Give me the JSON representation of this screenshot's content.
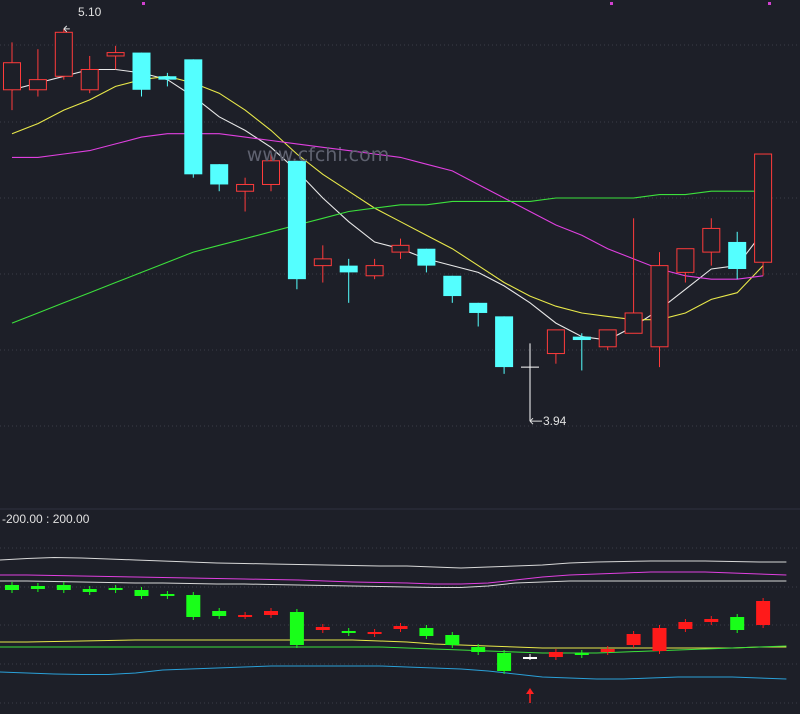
{
  "watermark": "www.cfchi.com",
  "colors": {
    "background": "#1d1f28",
    "grid": "#3a3d48",
    "divider": "#2e3140",
    "up_candle": "#ff3b3b",
    "down_candle": "#54ffff",
    "sub_up": "#ff1a1a",
    "sub_down": "#19ff19",
    "ma_white": "#e8e8e8",
    "ma_yellow": "#e8e84a",
    "ma_magenta": "#e040e0",
    "ma_green": "#3ce03c",
    "band_white": "#d8d8d8",
    "band_magenta": "#e040e0",
    "band_yellow": "#e8e84a",
    "band_green": "#3ce03c",
    "band_blue": "#2aa0d8",
    "text": "#e0e0e0",
    "marker": "#d040d0",
    "arrow": "#ff2020"
  },
  "chart_data": [
    {
      "type": "candlestick",
      "annotations": {
        "high_label": "5.10",
        "low_label": "3.94"
      },
      "ylim": [
        3.84,
        5.15
      ],
      "candles": [
        {
          "o": 4.92,
          "c": 5.0,
          "h": 5.06,
          "l": 4.86
        },
        {
          "o": 4.92,
          "c": 4.95,
          "h": 5.04,
          "l": 4.9
        },
        {
          "o": 4.96,
          "c": 5.09,
          "h": 5.1,
          "l": 4.95
        },
        {
          "o": 4.92,
          "c": 4.98,
          "h": 5.02,
          "l": 4.91
        },
        {
          "o": 5.02,
          "c": 5.03,
          "h": 5.05,
          "l": 4.98
        },
        {
          "o": 5.03,
          "c": 4.92,
          "h": 5.03,
          "l": 4.9
        },
        {
          "o": 4.96,
          "c": 4.95,
          "h": 4.97,
          "l": 4.93
        },
        {
          "o": 5.01,
          "c": 4.67,
          "h": 5.01,
          "l": 4.66
        },
        {
          "o": 4.7,
          "c": 4.64,
          "h": 4.7,
          "l": 4.62
        },
        {
          "o": 4.62,
          "c": 4.64,
          "h": 4.66,
          "l": 4.56
        },
        {
          "o": 4.64,
          "c": 4.71,
          "h": 4.74,
          "l": 4.62
        },
        {
          "o": 4.71,
          "c": 4.36,
          "h": 4.71,
          "l": 4.33
        },
        {
          "o": 4.4,
          "c": 4.42,
          "h": 4.46,
          "l": 4.35
        },
        {
          "o": 4.4,
          "c": 4.38,
          "h": 4.42,
          "l": 4.29
        },
        {
          "o": 4.37,
          "c": 4.4,
          "h": 4.42,
          "l": 4.36
        },
        {
          "o": 4.44,
          "c": 4.46,
          "h": 4.48,
          "l": 4.42
        },
        {
          "o": 4.45,
          "c": 4.4,
          "h": 4.45,
          "l": 4.38
        },
        {
          "o": 4.37,
          "c": 4.31,
          "h": 4.37,
          "l": 4.29
        },
        {
          "o": 4.29,
          "c": 4.26,
          "h": 4.29,
          "l": 4.22
        },
        {
          "o": 4.25,
          "c": 4.1,
          "h": 4.25,
          "l": 4.08
        },
        {
          "o": 4.1,
          "c": 4.1,
          "h": 4.17,
          "l": 3.94
        },
        {
          "o": 4.14,
          "c": 4.21,
          "h": 4.21,
          "l": 4.11
        },
        {
          "o": 4.19,
          "c": 4.18,
          "h": 4.2,
          "l": 4.09
        },
        {
          "o": 4.16,
          "c": 4.21,
          "h": 4.21,
          "l": 4.15
        },
        {
          "o": 4.2,
          "c": 4.26,
          "h": 4.54,
          "l": 4.2
        },
        {
          "o": 4.16,
          "c": 4.4,
          "h": 4.44,
          "l": 4.1
        },
        {
          "o": 4.38,
          "c": 4.45,
          "h": 4.45,
          "l": 4.35
        },
        {
          "o": 4.44,
          "c": 4.51,
          "h": 4.54,
          "l": 4.4
        },
        {
          "o": 4.47,
          "c": 4.39,
          "h": 4.5,
          "l": 4.36
        },
        {
          "o": 4.41,
          "c": 4.73,
          "h": 4.73,
          "l": 4.37
        }
      ],
      "ma_lines": [
        {
          "color_key": "ma_white",
          "values": [
            4.92,
            4.94,
            4.96,
            4.98,
            4.98,
            4.97,
            4.95,
            4.9,
            4.84,
            4.8,
            4.75,
            4.68,
            4.6,
            4.53,
            4.47,
            4.45,
            4.42,
            4.4,
            4.38,
            4.34,
            4.29,
            4.23,
            4.19,
            4.18,
            4.22,
            4.27,
            4.33,
            4.39,
            4.4,
            4.5
          ]
        },
        {
          "color_key": "ma_yellow",
          "values": [
            4.79,
            4.82,
            4.86,
            4.89,
            4.93,
            4.95,
            4.96,
            4.94,
            4.91,
            4.86,
            4.8,
            4.73,
            4.67,
            4.62,
            4.57,
            4.53,
            4.49,
            4.45,
            4.4,
            4.35,
            4.31,
            4.28,
            4.26,
            4.25,
            4.24,
            4.24,
            4.26,
            4.3,
            4.32,
            4.4
          ]
        },
        {
          "color_key": "ma_magenta",
          "values": [
            4.72,
            4.72,
            4.73,
            4.74,
            4.76,
            4.78,
            4.79,
            4.79,
            4.79,
            4.78,
            4.77,
            4.76,
            4.75,
            4.74,
            4.73,
            4.72,
            4.7,
            4.68,
            4.64,
            4.6,
            4.56,
            4.52,
            4.49,
            4.45,
            4.42,
            4.39,
            4.37,
            4.36,
            4.36,
            4.37
          ]
        },
        {
          "color_key": "ma_green",
          "values": [
            4.23,
            4.26,
            4.29,
            4.32,
            4.35,
            4.38,
            4.41,
            4.44,
            4.46,
            4.48,
            4.5,
            4.52,
            4.54,
            4.56,
            4.57,
            4.58,
            4.58,
            4.59,
            4.59,
            4.59,
            4.59,
            4.6,
            4.6,
            4.6,
            4.6,
            4.61,
            4.61,
            4.62,
            4.62,
            4.62
          ]
        }
      ]
    },
    {
      "type": "candlestick",
      "header": "-200.00 : 200.00",
      "ylim": [
        -200,
        200
      ],
      "candles": [
        {
          "o": 80,
          "c": 70
        },
        {
          "o": 78,
          "c": 72
        },
        {
          "o": 80,
          "c": 70
        },
        {
          "o": 72,
          "c": 66
        },
        {
          "o": 74,
          "c": 70
        },
        {
          "o": 70,
          "c": 58
        },
        {
          "o": 62,
          "c": 58
        },
        {
          "o": 60,
          "c": 16
        },
        {
          "o": 28,
          "c": 18
        },
        {
          "o": 18,
          "c": 20
        },
        {
          "o": 20,
          "c": 28
        },
        {
          "o": 26,
          "c": -40
        },
        {
          "o": -10,
          "c": -4
        },
        {
          "o": -12,
          "c": -16
        },
        {
          "o": -18,
          "c": -14
        },
        {
          "o": -8,
          "c": -2
        },
        {
          "o": -6,
          "c": -22
        },
        {
          "o": -20,
          "c": -40
        },
        {
          "o": -44,
          "c": -54
        },
        {
          "o": -56,
          "c": -92
        },
        {
          "o": -64,
          "c": -64
        },
        {
          "o": -64,
          "c": -54
        },
        {
          "o": -56,
          "c": -60
        },
        {
          "o": -54,
          "c": -48
        },
        {
          "o": -40,
          "c": -18
        },
        {
          "o": -52,
          "c": -6
        },
        {
          "o": -8,
          "c": 6
        },
        {
          "o": 6,
          "c": 12
        },
        {
          "o": 16,
          "c": -10
        },
        {
          "o": 0,
          "c": 48
        }
      ],
      "bands": [
        {
          "color_key": "band_white",
          "values": [
            130,
            133,
            135,
            134,
            132,
            130,
            128,
            126,
            124,
            123,
            122,
            121,
            120,
            119,
            118,
            118,
            116,
            114,
            116,
            118,
            120,
            124,
            126,
            127,
            128,
            128,
            128,
            127,
            126,
            126
          ]
        },
        {
          "color_key": "band_magenta",
          "values": [
            100,
            100,
            99,
            98,
            97,
            96,
            95,
            94,
            93,
            92,
            91,
            90,
            88,
            86,
            85,
            84,
            82,
            82,
            84,
            90,
            96,
            100,
            102,
            104,
            106,
            106,
            106,
            104,
            102,
            100
          ]
        },
        {
          "color_key": "band_white",
          "values": [
            88,
            88,
            87,
            86,
            85,
            84,
            84,
            83,
            82,
            82,
            81,
            80,
            79,
            78,
            77,
            76,
            75,
            75,
            78,
            84,
            86,
            88,
            88,
            88,
            88,
            88,
            88,
            88,
            88,
            88
          ]
        },
        {
          "color_key": "band_yellow",
          "values": [
            -34,
            -34,
            -33,
            -32,
            -31,
            -30,
            -30,
            -30,
            -30,
            -30,
            -30,
            -30,
            -30,
            -30,
            -32,
            -34,
            -38,
            -40,
            -42,
            -44,
            -46,
            -46,
            -46,
            -46,
            -46,
            -46,
            -46,
            -46,
            -44,
            -44
          ]
        },
        {
          "color_key": "band_green",
          "values": [
            -44,
            -44,
            -44,
            -44,
            -44,
            -44,
            -44,
            -44,
            -44,
            -44,
            -44,
            -44,
            -44,
            -44,
            -44,
            -46,
            -48,
            -50,
            -52,
            -54,
            -56,
            -56,
            -56,
            -54,
            -52,
            -50,
            -48,
            -46,
            -44,
            -42
          ]
        },
        {
          "color_key": "band_blue",
          "values": [
            -94,
            -96,
            -98,
            -99,
            -99,
            -96,
            -90,
            -88,
            -86,
            -84,
            -82,
            -82,
            -82,
            -82,
            -82,
            -84,
            -86,
            -88,
            -92,
            -98,
            -104,
            -106,
            -108,
            -108,
            -106,
            -104,
            -104,
            -104,
            -106,
            -108
          ]
        }
      ],
      "annotations": {
        "arrow_at_index": 20
      }
    }
  ]
}
